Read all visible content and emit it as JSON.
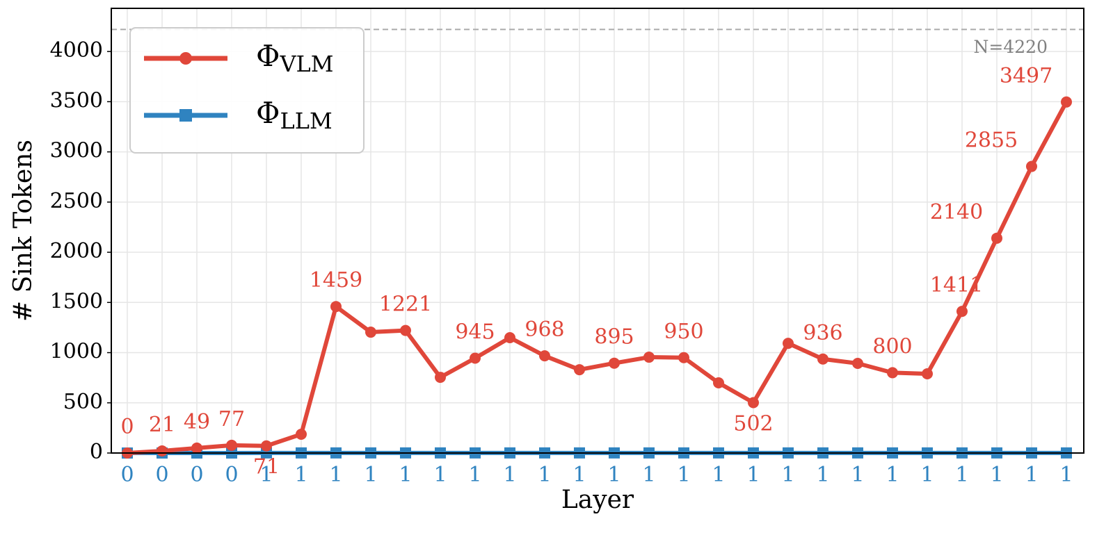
{
  "chart_data": {
    "type": "line",
    "x_label": "Layer",
    "y_label": "# Sink Tokens",
    "categories": [
      "0",
      "0",
      "0",
      "0",
      "1",
      "1",
      "1",
      "1",
      "1",
      "1",
      "1",
      "1",
      "1",
      "1",
      "1",
      "1",
      "1",
      "1",
      "1",
      "1",
      "1",
      "1",
      "1",
      "1",
      "1",
      "1",
      "1",
      "1"
    ],
    "series": [
      {
        "name": "ΦVLM",
        "color": "#e0473a",
        "values": [
          0,
          21,
          49,
          77,
          71,
          187,
          1459,
          1204,
          1221,
          754,
          945,
          1149,
          968,
          830,
          895,
          955,
          950,
          699,
          502,
          1093,
          936,
          893,
          800,
          789,
          1411,
          2140,
          2855,
          3497
        ],
        "value_labels": [
          "0",
          "21",
          "49",
          "77",
          "71",
          null,
          "1459",
          null,
          "1221",
          null,
          "945",
          null,
          "968",
          null,
          "895",
          null,
          "950",
          null,
          "502",
          null,
          "936",
          null,
          "800",
          null,
          "1411",
          "2140",
          "2855",
          "3497"
        ]
      },
      {
        "name": "ΦLLM",
        "color": "#2f83c0",
        "values": [
          0,
          0,
          0,
          0,
          1,
          1,
          1,
          1,
          1,
          1,
          1,
          1,
          1,
          1,
          1,
          1,
          1,
          1,
          1,
          1,
          1,
          1,
          1,
          1,
          1,
          1,
          1,
          1
        ]
      }
    ],
    "reference_line": {
      "value": 4220,
      "label": "N=4220",
      "color": "#aaaaaa"
    },
    "ylim": [
      0,
      4430
    ],
    "yticks": [
      0,
      500,
      1000,
      1500,
      2000,
      2500,
      3000,
      3500,
      4000
    ],
    "grid": true,
    "legend": "upper left"
  }
}
